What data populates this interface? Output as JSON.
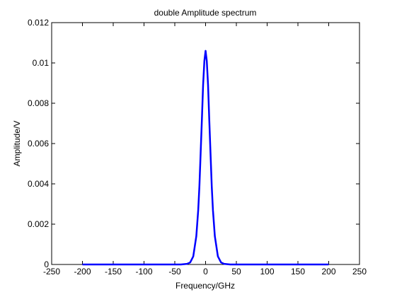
{
  "chart_data": {
    "type": "line",
    "title": "double Amplitude spectrum",
    "xlabel": "Frequency/GHz",
    "ylabel": "Amplitude/V",
    "xlim": [
      -250,
      250
    ],
    "ylim": [
      0,
      0.012
    ],
    "xticks": [
      -250,
      -200,
      -150,
      -100,
      -50,
      0,
      50,
      100,
      150,
      200,
      250
    ],
    "xtick_labels": [
      "-250",
      "-200",
      "-150",
      "-100",
      "-50",
      "0",
      "50",
      "100",
      "150",
      "200",
      "250"
    ],
    "yticks": [
      0,
      0.002,
      0.004,
      0.006,
      0.008,
      0.01,
      0.012
    ],
    "ytick_labels": [
      "0",
      "0.002",
      "0.004",
      "0.006",
      "0.008",
      "0.01",
      "0.012"
    ],
    "grid": false,
    "legend": "none",
    "series": [
      {
        "color": "#0000ff",
        "x": [
          -200,
          -150,
          -100,
          -60,
          -40,
          -30,
          -25,
          -20,
          -15,
          -12,
          -10,
          -8,
          -6,
          -4,
          -2,
          0,
          2,
          4,
          6,
          8,
          10,
          12,
          15,
          20,
          25,
          30,
          40,
          60,
          100,
          150,
          200
        ],
        "y": [
          0,
          0,
          0,
          0,
          0.0,
          3e-05,
          0.0001,
          0.0004,
          0.0014,
          0.0027,
          0.0039,
          0.0055,
          0.0072,
          0.0089,
          0.0101,
          0.0106,
          0.0101,
          0.0089,
          0.0072,
          0.0055,
          0.0039,
          0.0027,
          0.0014,
          0.0004,
          0.0001,
          3e-05,
          0,
          0,
          0,
          0,
          0
        ]
      }
    ]
  }
}
